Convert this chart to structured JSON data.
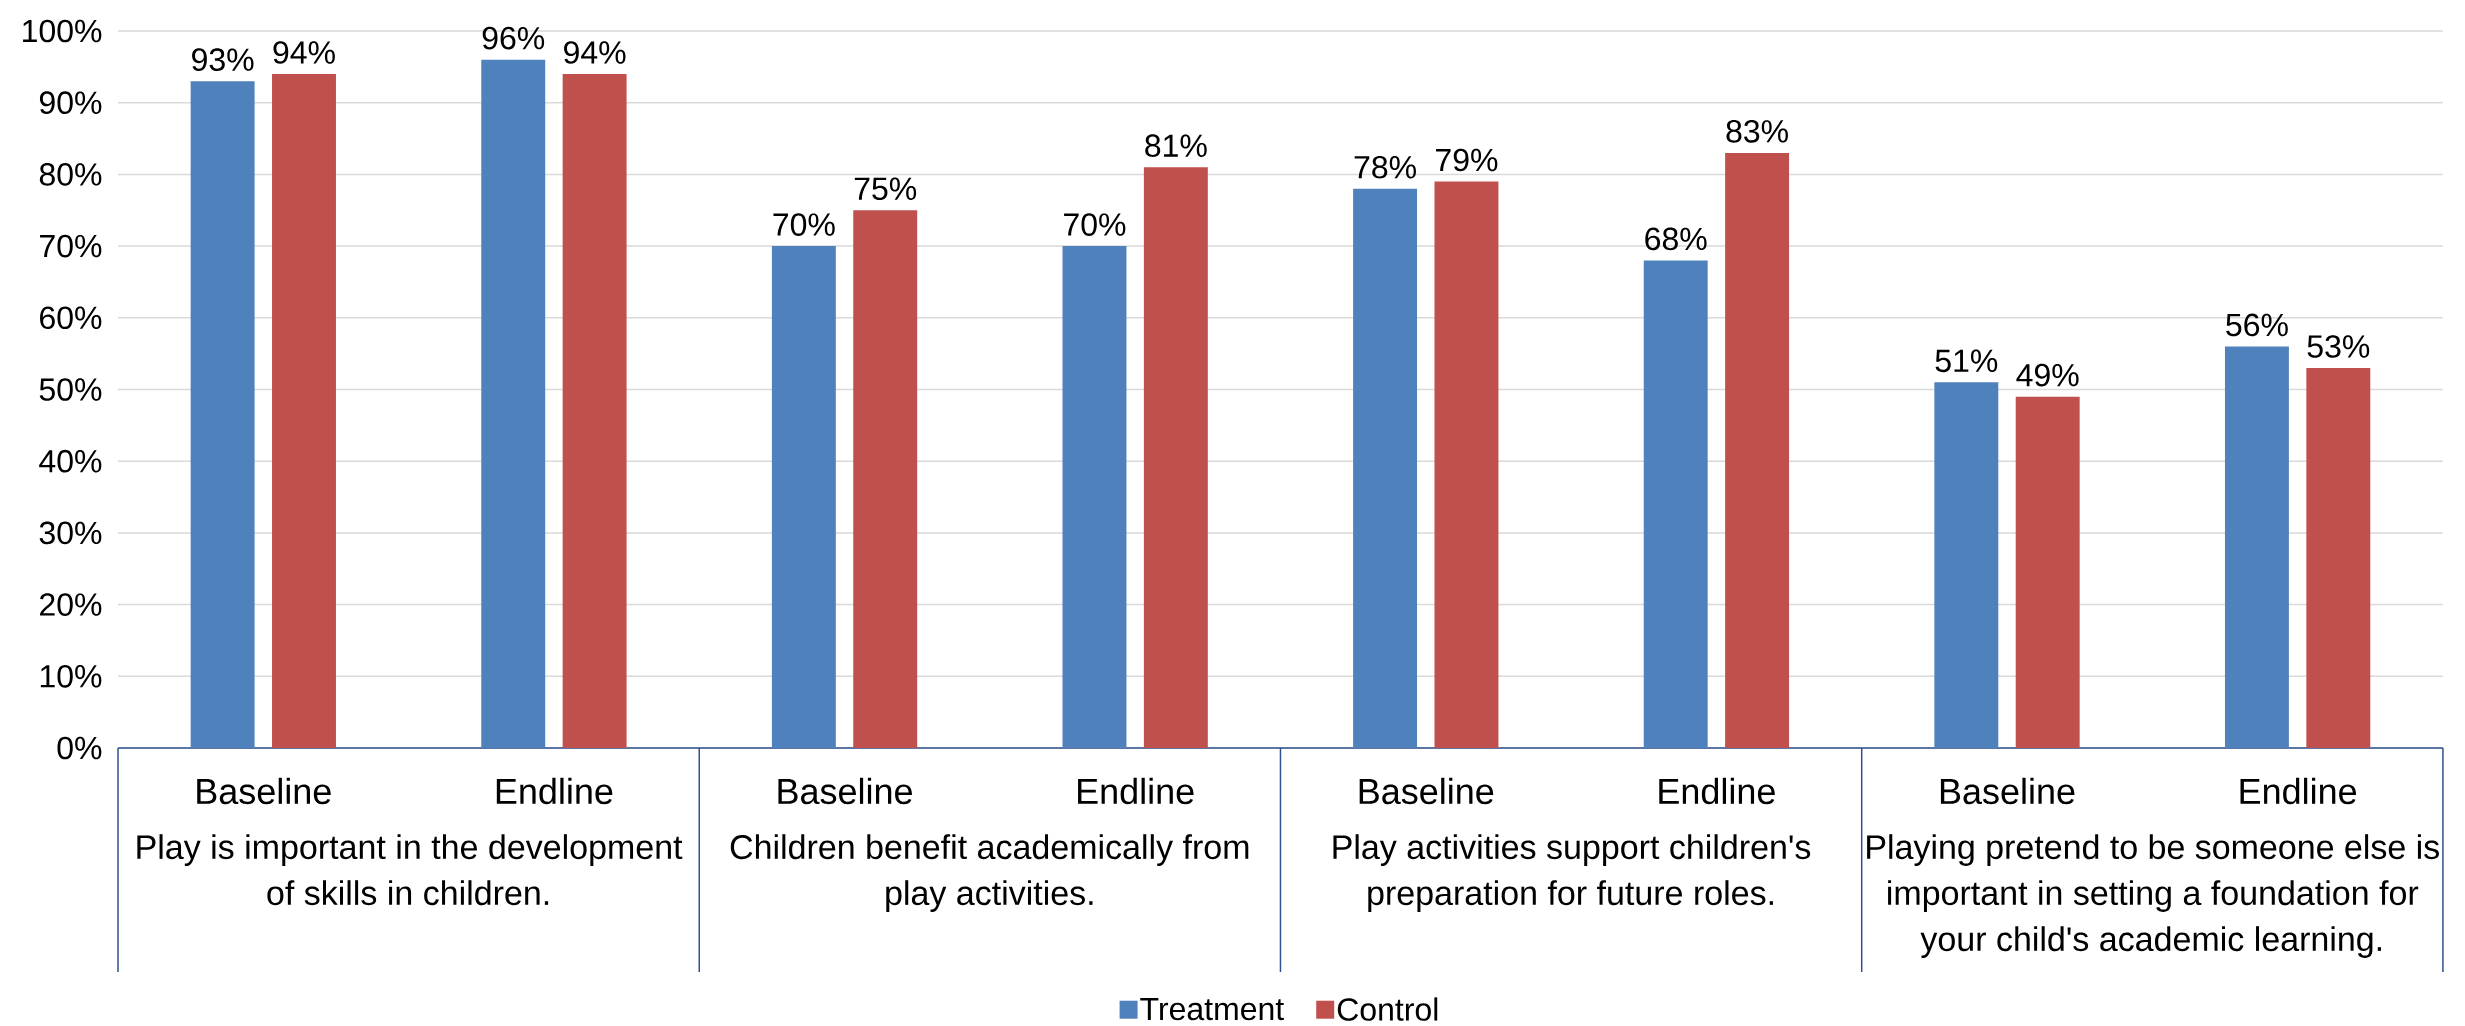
{
  "chart_data": {
    "type": "bar",
    "categories": [
      "Baseline",
      "Endline",
      "Baseline",
      "Endline",
      "Baseline",
      "Endline",
      "Baseline",
      "Endline"
    ],
    "series": [
      {
        "name": "Treatment",
        "color": "#4f81bd",
        "values": [
          93,
          96,
          70,
          70,
          78,
          68,
          51,
          56
        ],
        "value_labels": [
          "93%",
          "96%",
          "70%",
          "70%",
          "78%",
          "68%",
          "51%",
          "56%"
        ]
      },
      {
        "name": "Control",
        "color": "#c0504d",
        "values": [
          94,
          94,
          75,
          81,
          79,
          83,
          49,
          53
        ],
        "value_labels": [
          "94%",
          "94%",
          "75%",
          "81%",
          "79%",
          "83%",
          "49%",
          "53%"
        ]
      }
    ],
    "ylim": [
      0,
      100
    ],
    "yticks": [
      {
        "value": 0,
        "label": "0%"
      },
      {
        "value": 10,
        "label": "10%"
      },
      {
        "value": 20,
        "label": "20%"
      },
      {
        "value": 30,
        "label": "30%"
      },
      {
        "value": 40,
        "label": "40%"
      },
      {
        "value": 50,
        "label": "50%"
      },
      {
        "value": 60,
        "label": "60%"
      },
      {
        "value": 70,
        "label": "70%"
      },
      {
        "value": 80,
        "label": "80%"
      },
      {
        "value": 90,
        "label": "90%"
      },
      {
        "value": 100,
        "label": "100%"
      }
    ],
    "grid": "y",
    "legend": "bottom",
    "annotations": [
      "Play is important in the development of skills in children.",
      "Children benefit academically from play activities.",
      "Play activities support children's preparation for future roles.",
      "Playing pretend to be someone else is important in setting a foundation for your child's academic learning."
    ]
  }
}
